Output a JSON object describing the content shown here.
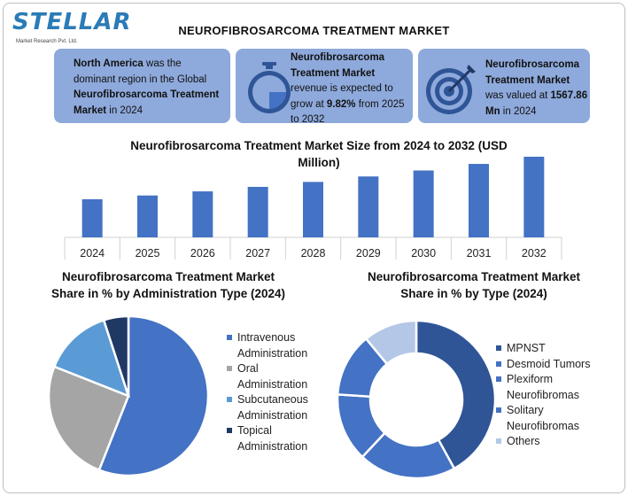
{
  "logo": {
    "word": "STELLAR",
    "subtitle": "Market Research Pvt. Ltd."
  },
  "main_title": "NEUROFIBROSARCOMA TREATMENT MARKET",
  "cards": {
    "region": {
      "bold1": "North America",
      "text1": " was the dominant region in the Global ",
      "bold2": "Neurofibrosarcoma Treatment Market",
      "text2": " in 2024"
    },
    "growth": {
      "bold1": "Neurofibrosarcoma Treatment Market",
      "text1": " revenue is expected to grow at ",
      "bold2": "9.82%",
      "text2": " from 2025 to 2032"
    },
    "value": {
      "bold1": "Neurofibrosarcoma Treatment Market",
      "text1": " was valued at ",
      "bold2": "1567.86 Mn",
      "text2": " in 2024"
    }
  },
  "colors": {
    "bar": "#4472c4",
    "card": "#8ea9db"
  },
  "icons": [
    "stopwatch-icon",
    "target-icon"
  ],
  "chart_data": [
    {
      "type": "bar",
      "title": "Neurofibrosarcoma Treatment Market Size from 2024 to 2032 (USD Million)",
      "categories": [
        "2024",
        "2025",
        "2026",
        "2027",
        "2028",
        "2029",
        "2030",
        "2031",
        "2032"
      ],
      "values": [
        1567.86,
        1722,
        1891,
        2076,
        2280,
        2504,
        2750,
        3020,
        3316
      ],
      "ylim": [
        0,
        3350
      ],
      "grid": false
    },
    {
      "type": "pie",
      "title": "Neurofibrosarcoma Treatment Market Share in % by Administration Type (2024)",
      "labels": [
        "Intravenous Administration",
        "Oral Administration",
        "Subcutaneous Administration",
        "Topical Administration"
      ],
      "values": [
        56,
        25,
        14,
        5
      ],
      "colors": [
        "#4472c4",
        "#a5a5a5",
        "#5b9bd5",
        "#1f3864"
      ],
      "legend": "right"
    },
    {
      "type": "pie",
      "title": "Neurofibrosarcoma Treatment Market Share in % by Type (2024)",
      "labels": [
        "MPNST",
        "Desmoid Tumors",
        "Plexiform Neurofibromas",
        "Solitary Neurofibromas",
        "Others"
      ],
      "values": [
        42,
        20,
        14,
        13,
        11
      ],
      "colors": [
        "#2f5597",
        "#4472c4",
        "#4472c4",
        "#4472c4",
        "#b4c7e7"
      ],
      "donut": true,
      "legend": "right"
    }
  ]
}
